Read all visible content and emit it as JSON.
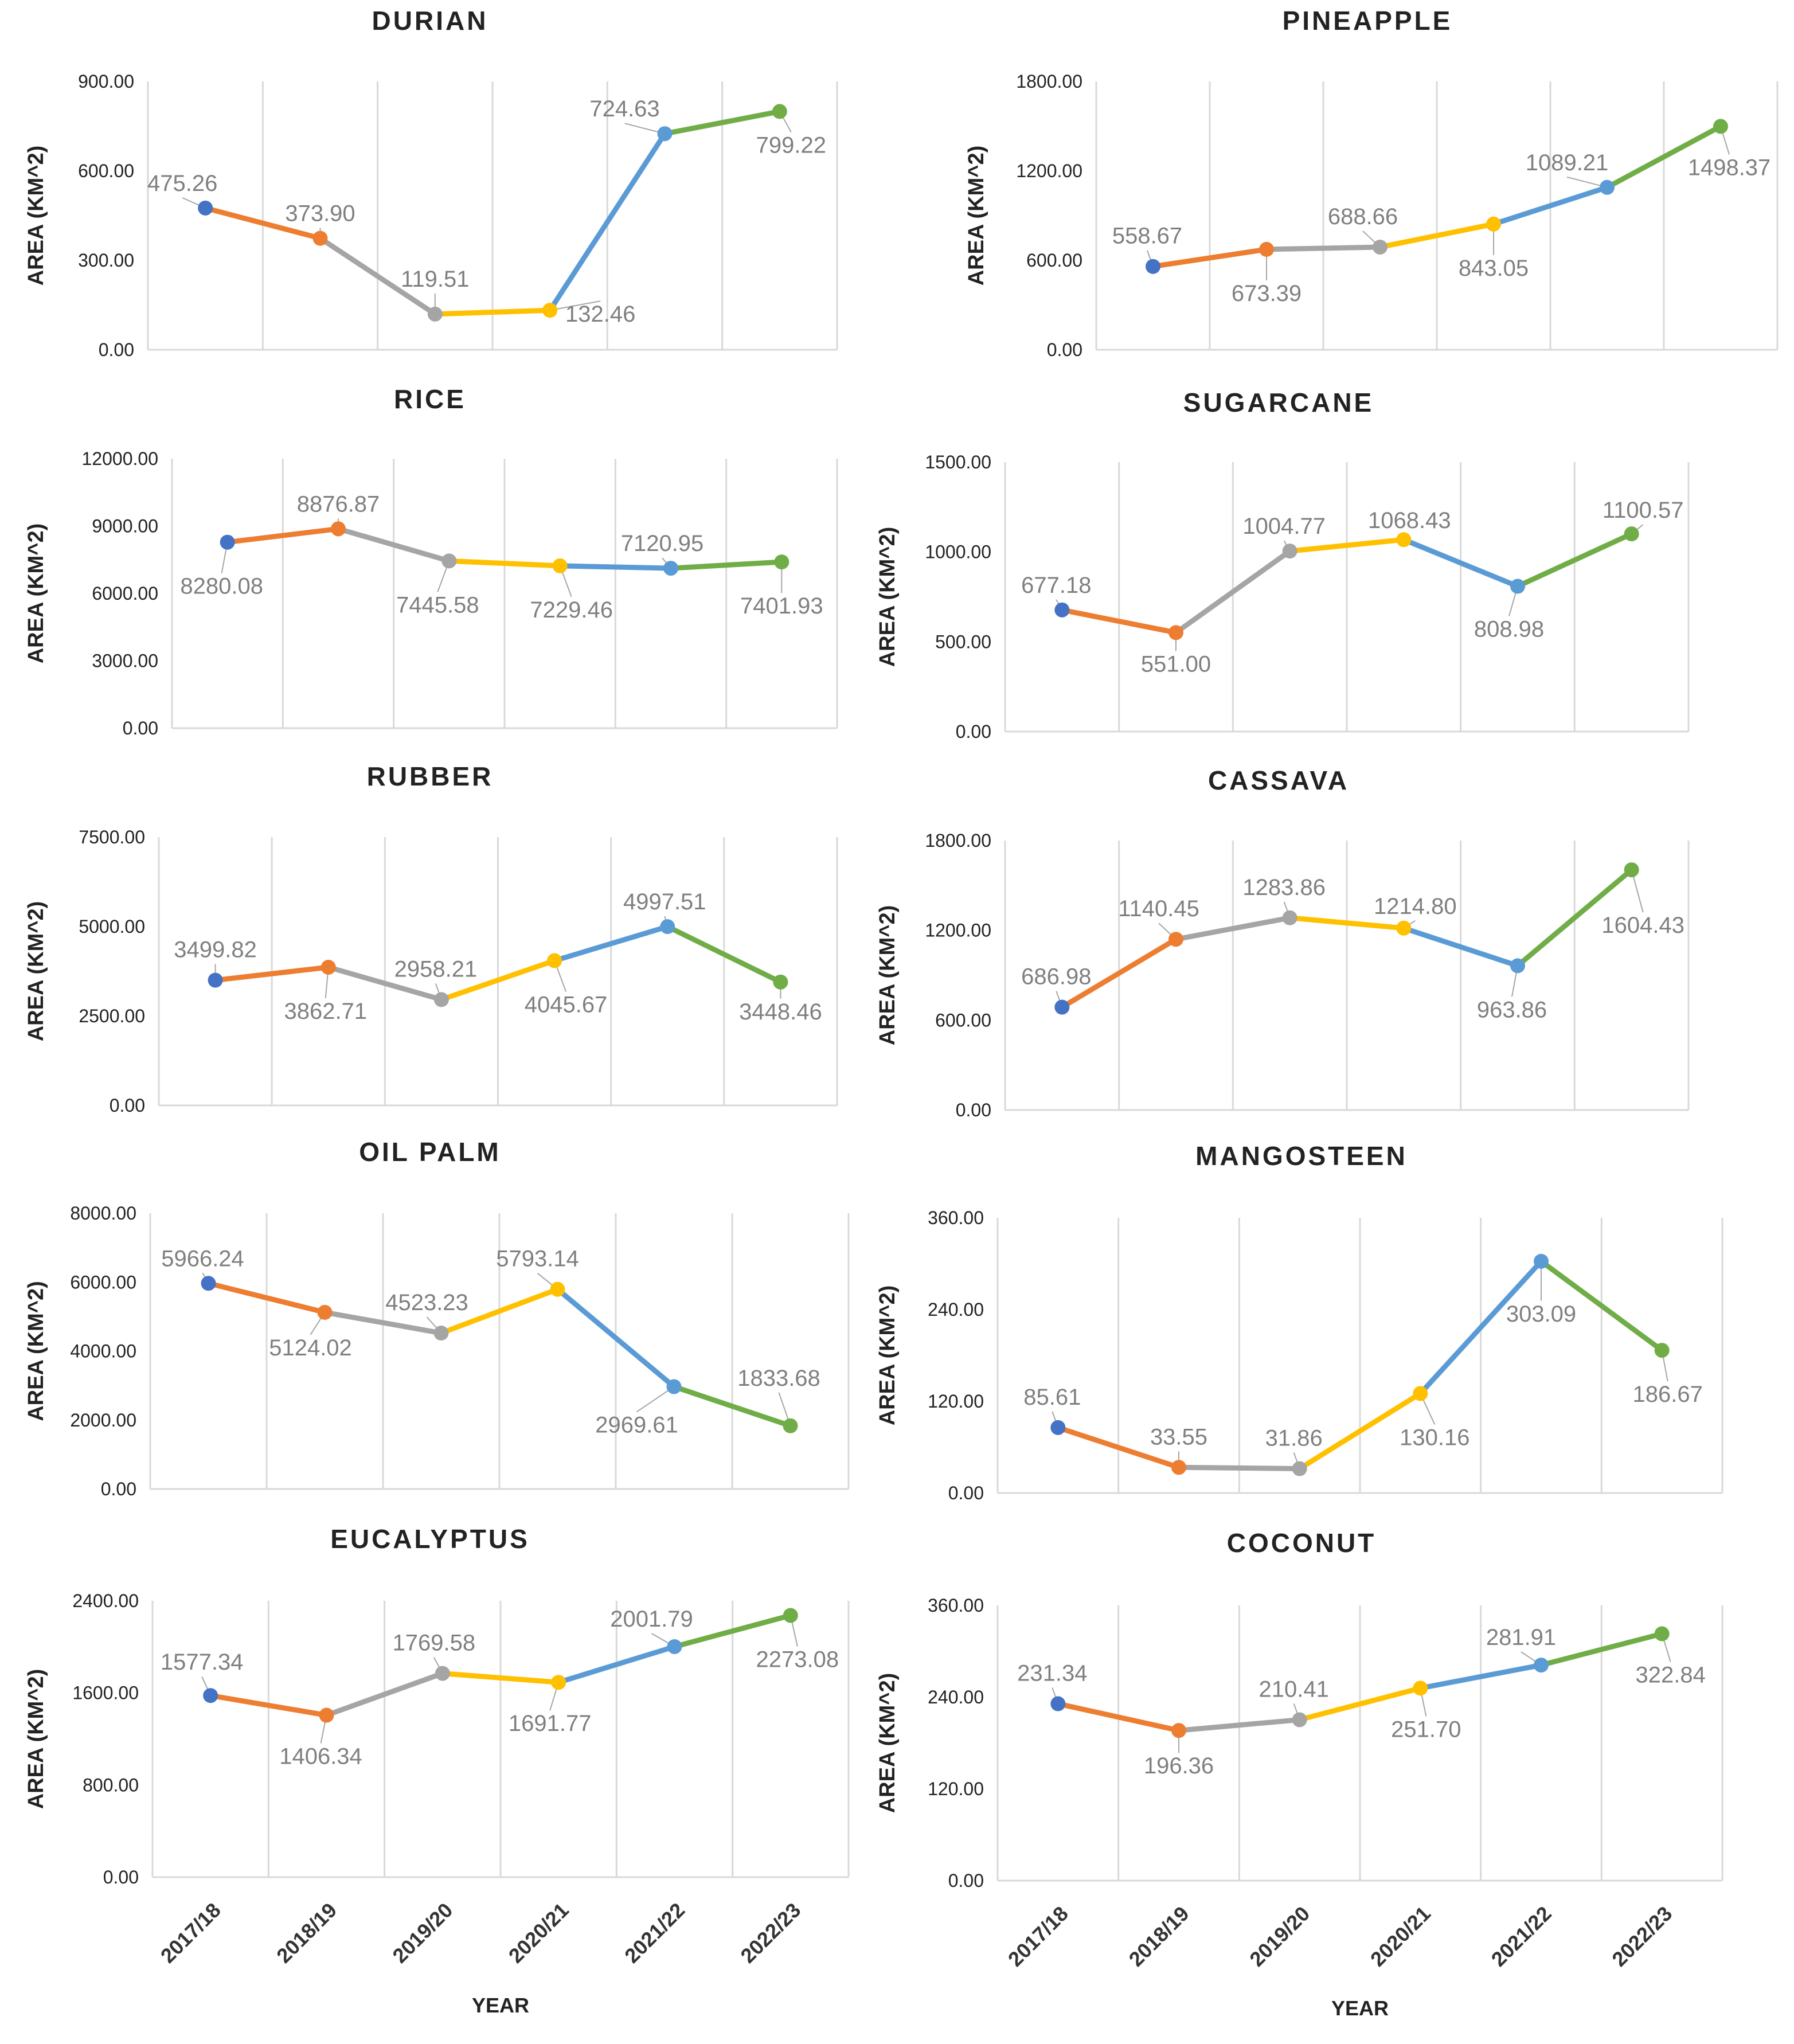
{
  "colors": {
    "segments": [
      "#ED7D31",
      "#A5A5A5",
      "#FFC000",
      "#5B9BD5",
      "#70AD47"
    ],
    "first_point": "#4472C4",
    "grid": "#d9d9d9",
    "label": "#7f7f7f"
  },
  "chart_data": [
    {
      "type": "line",
      "title": "DURIAN",
      "ylabel": "AREA (KM^2)",
      "xlabel": "",
      "categories": [
        "2017/18",
        "2018/19",
        "2019/20",
        "2020/21",
        "2021/22",
        "2022/23"
      ],
      "values": [
        475.26,
        373.9,
        119.51,
        132.46,
        724.63,
        799.22
      ],
      "labels": [
        "475.26",
        "373.90",
        "119.51",
        "132.46",
        "724.63",
        "799.22"
      ],
      "ylim": [
        0,
        900
      ],
      "yticks": [
        "0.00",
        "300.00",
        "600.00",
        "900.00"
      ],
      "show_xticks": false,
      "grid": true
    },
    {
      "type": "line",
      "title": "PINEAPPLE",
      "ylabel": "AREA (KM^2)",
      "xlabel": "",
      "categories": [
        "2017/18",
        "2018/19",
        "2019/20",
        "2020/21",
        "2021/22",
        "2022/23"
      ],
      "values": [
        558.67,
        673.39,
        688.66,
        843.05,
        1089.21,
        1498.37
      ],
      "labels": [
        "558.67",
        "673.39",
        "688.66",
        "843.05",
        "1089.21",
        "1498.37"
      ],
      "ylim": [
        0,
        1800
      ],
      "yticks": [
        "0.00",
        "600.00",
        "1200.00",
        "1800.00"
      ],
      "show_xticks": false,
      "grid": true
    },
    {
      "type": "line",
      "title": "RICE",
      "ylabel": "AREA (KM^2)",
      "xlabel": "",
      "categories": [
        "2017/18",
        "2018/19",
        "2019/20",
        "2020/21",
        "2021/22",
        "2022/23"
      ],
      "values": [
        8280.08,
        8876.87,
        7445.58,
        7229.46,
        7120.95,
        7401.93
      ],
      "labels": [
        "8280.08",
        "8876.87",
        "7445.58",
        "7229.46",
        "7120.95",
        "7401.93"
      ],
      "ylim": [
        0,
        12000
      ],
      "yticks": [
        "0.00",
        "3000.00",
        "6000.00",
        "9000.00",
        "12000.00"
      ],
      "show_xticks": false,
      "grid": true
    },
    {
      "type": "line",
      "title": "SUGARCANE",
      "ylabel": "AREA (KM^2)",
      "xlabel": "",
      "categories": [
        "2017/18",
        "2018/19",
        "2019/20",
        "2020/21",
        "2021/22",
        "2022/23"
      ],
      "values": [
        677.18,
        551.0,
        1004.77,
        1068.43,
        808.98,
        1100.57
      ],
      "labels": [
        "677.18",
        "551.00",
        "1004.77",
        "1068.43",
        "808.98",
        "1100.57"
      ],
      "ylim": [
        0,
        1500
      ],
      "yticks": [
        "0.00",
        "500.00",
        "1000.00",
        "1500.00"
      ],
      "show_xticks": false,
      "grid": true
    },
    {
      "type": "line",
      "title": "RUBBER",
      "ylabel": "AREA (KM^2)",
      "xlabel": "",
      "categories": [
        "2017/18",
        "2018/19",
        "2019/20",
        "2020/21",
        "2021/22",
        "2022/23"
      ],
      "values": [
        3499.82,
        3862.71,
        2958.21,
        4045.67,
        4997.51,
        3448.46
      ],
      "labels": [
        "3499.82",
        "3862.71",
        "2958.21",
        "4045.67",
        "4997.51",
        "3448.46"
      ],
      "ylim": [
        0,
        7500
      ],
      "yticks": [
        "0.00",
        "2500.00",
        "5000.00",
        "7500.00"
      ],
      "show_xticks": false,
      "grid": true
    },
    {
      "type": "line",
      "title": "CASSAVA",
      "ylabel": "AREA (KM^2)",
      "xlabel": "",
      "categories": [
        "2017/18",
        "2018/19",
        "2019/20",
        "2020/21",
        "2021/22",
        "2022/23"
      ],
      "values": [
        686.98,
        1140.45,
        1283.86,
        1214.8,
        963.86,
        1604.43
      ],
      "labels": [
        "686.98",
        "1140.45",
        "1283.86",
        "1214.80",
        "963.86",
        "1604.43"
      ],
      "ylim": [
        0,
        1800
      ],
      "yticks": [
        "0.00",
        "600.00",
        "1200.00",
        "1800.00"
      ],
      "show_xticks": false,
      "grid": true
    },
    {
      "type": "line",
      "title": "OIL PALM",
      "ylabel": "AREA (KM^2)",
      "xlabel": "",
      "categories": [
        "2017/18",
        "2018/19",
        "2019/20",
        "2020/21",
        "2021/22",
        "2022/23"
      ],
      "values": [
        5966.24,
        5124.02,
        4523.23,
        5793.14,
        2969.61,
        1833.68
      ],
      "labels": [
        "5966.24",
        "5124.02",
        "4523.23",
        "5793.14",
        "2969.61",
        "1833.68"
      ],
      "ylim": [
        0,
        8000
      ],
      "yticks": [
        "0.00",
        "2000.00",
        "4000.00",
        "6000.00",
        "8000.00"
      ],
      "show_xticks": false,
      "grid": true
    },
    {
      "type": "line",
      "title": "MANGOSTEEN",
      "ylabel": "AREA (KM^2)",
      "xlabel": "",
      "categories": [
        "2017/18",
        "2018/19",
        "2019/20",
        "2020/21",
        "2021/22",
        "2022/23"
      ],
      "values": [
        85.61,
        33.55,
        31.86,
        130.16,
        303.09,
        186.67
      ],
      "labels": [
        "85.61",
        "33.55",
        "31.86",
        "130.16",
        "303.09",
        "186.67"
      ],
      "ylim": [
        0,
        360
      ],
      "yticks": [
        "0.00",
        "120.00",
        "240.00",
        "360.00"
      ],
      "show_xticks": false,
      "grid": true
    },
    {
      "type": "line",
      "title": "EUCALYPTUS",
      "ylabel": "AREA (KM^2)",
      "xlabel": "YEAR",
      "categories": [
        "2017/18",
        "2018/19",
        "2019/20",
        "2020/21",
        "2021/22",
        "2022/23"
      ],
      "values": [
        1577.34,
        1406.34,
        1769.58,
        1691.77,
        2001.79,
        2273.08
      ],
      "labels": [
        "1577.34",
        "1406.34",
        "1769.58",
        "1691.77",
        "2001.79",
        "2273.08"
      ],
      "ylim": [
        0,
        2400
      ],
      "yticks": [
        "0.00",
        "800.00",
        "1600.00",
        "2400.00"
      ],
      "show_xticks": true,
      "grid": true
    },
    {
      "type": "line",
      "title": "COCONUT",
      "ylabel": "AREA (KM^2)",
      "xlabel": "YEAR",
      "categories": [
        "2017/18",
        "2018/19",
        "2019/20",
        "2020/21",
        "2021/22",
        "2022/23"
      ],
      "values": [
        231.34,
        196.36,
        210.41,
        251.7,
        281.91,
        322.84
      ],
      "labels": [
        "231.34",
        "196.36",
        "210.41",
        "251.70",
        "281.91",
        "322.84"
      ],
      "ylim": [
        0,
        360
      ],
      "yticks": [
        "0.00",
        "120.00",
        "240.00",
        "360.00"
      ],
      "show_xticks": true,
      "grid": true
    }
  ]
}
